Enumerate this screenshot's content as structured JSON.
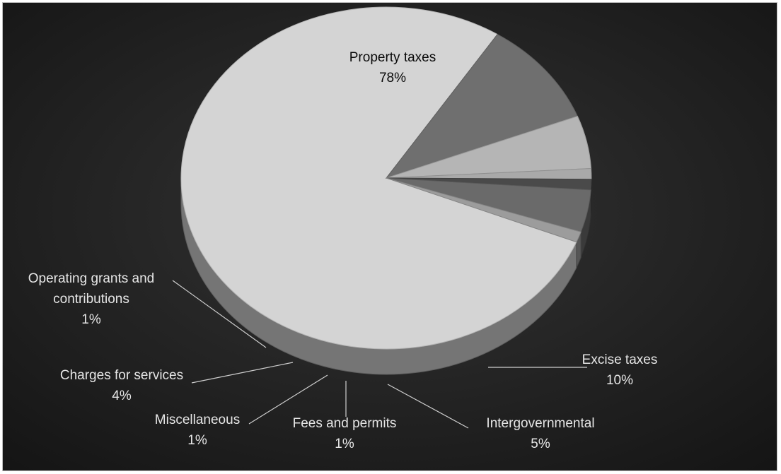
{
  "chart_data": {
    "type": "pie",
    "style": "3d",
    "title": "",
    "slices": [
      {
        "label": "Property taxes",
        "value": 78,
        "pct_label": "78%",
        "color": "#d4d4d4"
      },
      {
        "label": "Excise taxes",
        "value": 10,
        "pct_label": "10%",
        "color": "#6f6f6f"
      },
      {
        "label": "Intergovernmental",
        "value": 5,
        "pct_label": "5%",
        "color": "#b5b5b5"
      },
      {
        "label": "Fees and permits",
        "value": 1,
        "pct_label": "1%",
        "color": "#a9a9a9"
      },
      {
        "label": "Miscellaneous",
        "value": 1,
        "pct_label": "1%",
        "color": "#4a4a4a"
      },
      {
        "label": "Charges for services",
        "value": 4,
        "pct_label": "4%",
        "color": "#6a6a6a"
      },
      {
        "label": "Operating grants and contributions",
        "value": 1,
        "pct_label": "1%",
        "color": "#9c9c9c"
      }
    ],
    "background": "#1f1f1f",
    "legend": "none"
  }
}
